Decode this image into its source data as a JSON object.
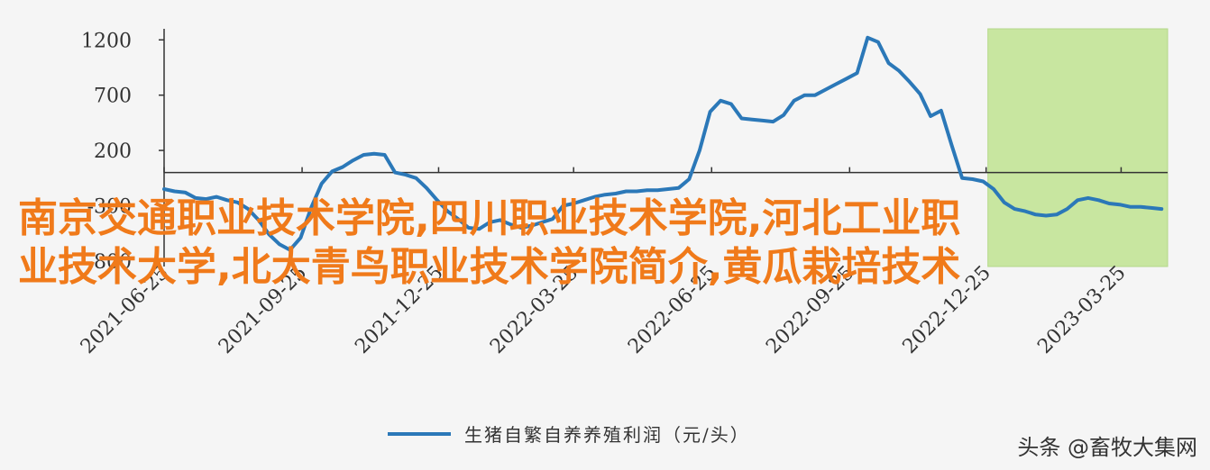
{
  "chart_data": {
    "type": "line",
    "title": "",
    "xlabel": "",
    "ylabel": "",
    "ylim": [
      -850,
      1300
    ],
    "yticks": [
      1200,
      700,
      200,
      -300,
      -800
    ],
    "ytick_labels": [
      "1200",
      "700",
      "200",
      "-300",
      "-800"
    ],
    "xtick_labels": [
      "2021-06-25",
      "2021-09-25",
      "2021-12-25",
      "2022-03-25",
      "2022-06-25",
      "2022-09-25",
      "2022-12-25",
      "2023-03-25"
    ],
    "highlight_range": [
      "2022-12-25",
      "2023-04-25"
    ],
    "highlight_color": "#c8e6a0",
    "line_color": "#2b78b8",
    "series": [
      {
        "name": "生猪自繁自养养殖利润（元/头）",
        "points": [
          [
            "2021-06-25",
            -150
          ],
          [
            "2021-07-02",
            -170
          ],
          [
            "2021-07-09",
            -180
          ],
          [
            "2021-07-16",
            -230
          ],
          [
            "2021-07-23",
            -240
          ],
          [
            "2021-07-30",
            -220
          ],
          [
            "2021-08-06",
            -250
          ],
          [
            "2021-08-13",
            -270
          ],
          [
            "2021-08-20",
            -330
          ],
          [
            "2021-08-27",
            -430
          ],
          [
            "2021-09-03",
            -560
          ],
          [
            "2021-09-10",
            -650
          ],
          [
            "2021-09-17",
            -700
          ],
          [
            "2021-09-24",
            -590
          ],
          [
            "2021-10-01",
            -320
          ],
          [
            "2021-10-08",
            -100
          ],
          [
            "2021-10-15",
            10
          ],
          [
            "2021-10-22",
            50
          ],
          [
            "2021-10-29",
            110
          ],
          [
            "2021-11-05",
            160
          ],
          [
            "2021-11-12",
            170
          ],
          [
            "2021-11-19",
            160
          ],
          [
            "2021-11-26",
            0
          ],
          [
            "2021-12-03",
            -20
          ],
          [
            "2021-12-10",
            -50
          ],
          [
            "2021-12-17",
            -140
          ],
          [
            "2021-12-24",
            -250
          ],
          [
            "2021-12-31",
            -350
          ],
          [
            "2022-01-07",
            -420
          ],
          [
            "2022-01-14",
            -500
          ],
          [
            "2022-01-21",
            -510
          ],
          [
            "2022-01-28",
            -450
          ],
          [
            "2022-02-04",
            -430
          ],
          [
            "2022-02-11",
            -470
          ],
          [
            "2022-02-18",
            -500
          ],
          [
            "2022-02-25",
            -480
          ],
          [
            "2022-03-04",
            -450
          ],
          [
            "2022-03-11",
            -420
          ],
          [
            "2022-03-18",
            -300
          ],
          [
            "2022-03-25",
            -280
          ],
          [
            "2022-04-01",
            -250
          ],
          [
            "2022-04-08",
            -220
          ],
          [
            "2022-04-15",
            -200
          ],
          [
            "2022-04-22",
            -190
          ],
          [
            "2022-04-29",
            -170
          ],
          [
            "2022-05-06",
            -170
          ],
          [
            "2022-05-13",
            -160
          ],
          [
            "2022-05-20",
            -160
          ],
          [
            "2022-05-27",
            -150
          ],
          [
            "2022-06-03",
            -140
          ],
          [
            "2022-06-10",
            -60
          ],
          [
            "2022-06-17",
            200
          ],
          [
            "2022-06-24",
            550
          ],
          [
            "2022-07-01",
            650
          ],
          [
            "2022-07-08",
            620
          ],
          [
            "2022-07-15",
            490
          ],
          [
            "2022-07-22",
            480
          ],
          [
            "2022-07-29",
            470
          ],
          [
            "2022-08-05",
            460
          ],
          [
            "2022-08-12",
            520
          ],
          [
            "2022-08-19",
            650
          ],
          [
            "2022-08-26",
            700
          ],
          [
            "2022-09-02",
            700
          ],
          [
            "2022-09-09",
            750
          ],
          [
            "2022-09-16",
            800
          ],
          [
            "2022-09-23",
            850
          ],
          [
            "2022-09-30",
            900
          ],
          [
            "2022-10-07",
            1220
          ],
          [
            "2022-10-14",
            1180
          ],
          [
            "2022-10-21",
            990
          ],
          [
            "2022-10-28",
            920
          ],
          [
            "2022-11-04",
            820
          ],
          [
            "2022-11-11",
            710
          ],
          [
            "2022-11-18",
            510
          ],
          [
            "2022-11-25",
            560
          ],
          [
            "2022-12-02",
            250
          ],
          [
            "2022-12-09",
            -50
          ],
          [
            "2022-12-16",
            -60
          ],
          [
            "2022-12-23",
            -80
          ],
          [
            "2022-12-30",
            -150
          ],
          [
            "2023-01-06",
            -270
          ],
          [
            "2023-01-13",
            -330
          ],
          [
            "2023-01-20",
            -350
          ],
          [
            "2023-01-27",
            -380
          ],
          [
            "2023-02-03",
            -390
          ],
          [
            "2023-02-10",
            -380
          ],
          [
            "2023-02-17",
            -330
          ],
          [
            "2023-02-24",
            -250
          ],
          [
            "2023-03-03",
            -230
          ],
          [
            "2023-03-10",
            -250
          ],
          [
            "2023-03-17",
            -280
          ],
          [
            "2023-03-24",
            -290
          ],
          [
            "2023-03-31",
            -310
          ],
          [
            "2023-04-07",
            -310
          ],
          [
            "2023-04-14",
            -320
          ],
          [
            "2023-04-21",
            -330
          ]
        ]
      }
    ],
    "legend_position": "bottom-center"
  },
  "overlay": {
    "line1": "南京交通职业技术学院,四川职业技术学院,河北工业职",
    "line2": "业技术大学,北大青鸟职业技术学院简介,黄瓜栽培技术",
    "color": "#f07a1a"
  },
  "watermark": "头条 @畜牧大集网"
}
